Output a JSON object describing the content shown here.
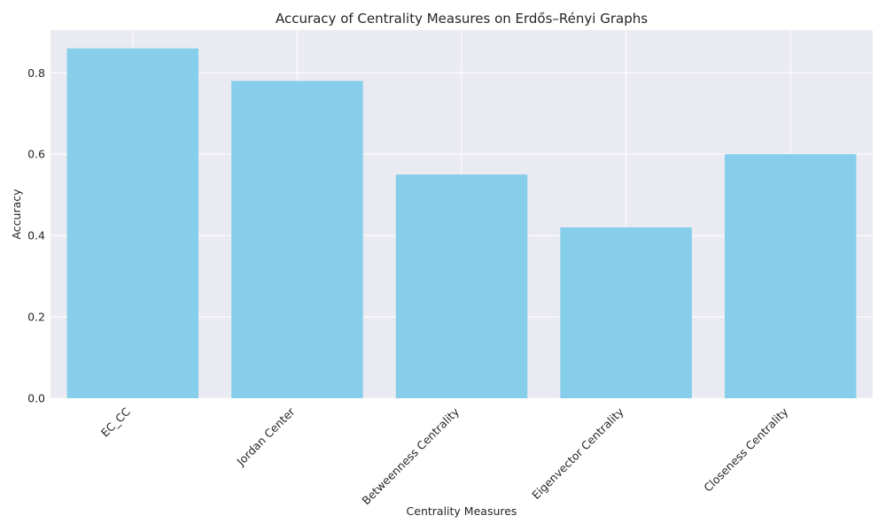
{
  "chart_data": {
    "type": "bar",
    "title": "Accuracy of Centrality Measures on Erdős–Rényi Graphs",
    "xlabel": "Centrality Measures",
    "ylabel": "Accuracy",
    "categories": [
      "EC_CC",
      "Jordan Center",
      "Betweenness Centrality",
      "Eigenvector Centrality",
      "Closeness Centrality"
    ],
    "values": [
      0.86,
      0.78,
      0.55,
      0.42,
      0.6
    ],
    "ylim": [
      0,
      0.905
    ],
    "yticks": [
      0.0,
      0.2,
      0.4,
      0.6,
      0.8
    ],
    "ytick_labels": [
      "0.0",
      "0.2",
      "0.4",
      "0.6",
      "0.8"
    ],
    "grid": true,
    "colors": {
      "bar": "#87CEEB",
      "plot_background": "#EAEAF2",
      "grid": "#FFFFFF",
      "text": "#262626"
    }
  }
}
